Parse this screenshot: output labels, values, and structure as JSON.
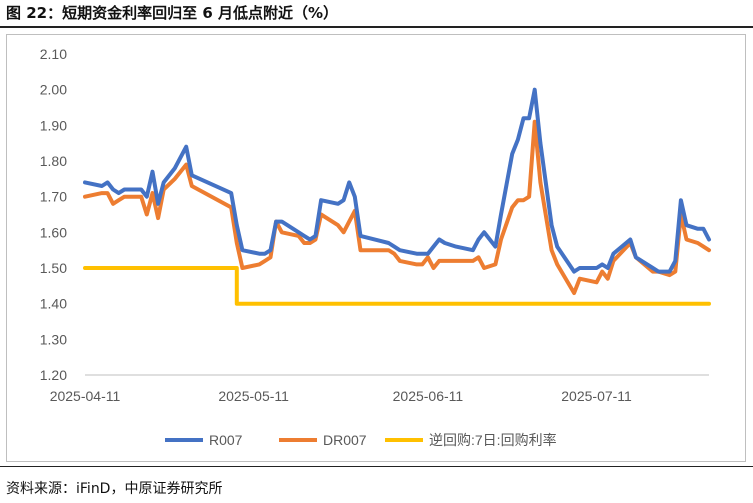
{
  "figure": {
    "title": "图 22：短期资金利率回归至 6 月低点附近（%）",
    "source": "资料来源：iFinD，中原证券研究所"
  },
  "chart_data": {
    "type": "line",
    "ylim": [
      1.2,
      2.1
    ],
    "yticks": [
      "1.20",
      "1.30",
      "1.40",
      "1.50",
      "1.60",
      "1.70",
      "1.80",
      "1.90",
      "2.00",
      "2.10"
    ],
    "xlim": [
      "2025-04-11",
      "2025-07-31"
    ],
    "xticks": [
      "2025-04-11",
      "2025-05-11",
      "2025-06-11",
      "2025-07-11"
    ],
    "grid": false,
    "legend": "bottom",
    "series": [
      {
        "name": "R007",
        "color": "#4472C4",
        "points": [
          [
            "2025-04-11",
            1.74
          ],
          [
            "2025-04-14",
            1.73
          ],
          [
            "2025-04-15",
            1.74
          ],
          [
            "2025-04-16",
            1.72
          ],
          [
            "2025-04-17",
            1.71
          ],
          [
            "2025-04-18",
            1.72
          ],
          [
            "2025-04-21",
            1.72
          ],
          [
            "2025-04-22",
            1.7
          ],
          [
            "2025-04-23",
            1.77
          ],
          [
            "2025-04-24",
            1.68
          ],
          [
            "2025-04-25",
            1.74
          ],
          [
            "2025-04-27",
            1.78
          ],
          [
            "2025-04-29",
            1.84
          ],
          [
            "2025-04-30",
            1.76
          ],
          [
            "2025-05-07",
            1.71
          ],
          [
            "2025-05-08",
            1.62
          ],
          [
            "2025-05-09",
            1.55
          ],
          [
            "2025-05-12",
            1.54
          ],
          [
            "2025-05-13",
            1.54
          ],
          [
            "2025-05-14",
            1.55
          ],
          [
            "2025-05-15",
            1.63
          ],
          [
            "2025-05-16",
            1.63
          ],
          [
            "2025-05-19",
            1.6
          ],
          [
            "2025-05-20",
            1.59
          ],
          [
            "2025-05-21",
            1.58
          ],
          [
            "2025-05-22",
            1.59
          ],
          [
            "2025-05-23",
            1.69
          ],
          [
            "2025-05-26",
            1.68
          ],
          [
            "2025-05-27",
            1.69
          ],
          [
            "2025-05-28",
            1.74
          ],
          [
            "2025-05-29",
            1.7
          ],
          [
            "2025-05-30",
            1.59
          ],
          [
            "2025-06-04",
            1.57
          ],
          [
            "2025-06-05",
            1.56
          ],
          [
            "2025-06-06",
            1.55
          ],
          [
            "2025-06-09",
            1.54
          ],
          [
            "2025-06-10",
            1.54
          ],
          [
            "2025-06-11",
            1.54
          ],
          [
            "2025-06-12",
            1.56
          ],
          [
            "2025-06-13",
            1.58
          ],
          [
            "2025-06-14",
            1.57
          ],
          [
            "2025-06-16",
            1.56
          ],
          [
            "2025-06-19",
            1.55
          ],
          [
            "2025-06-20",
            1.58
          ],
          [
            "2025-06-21",
            1.6
          ],
          [
            "2025-06-23",
            1.56
          ],
          [
            "2025-06-24",
            1.65
          ],
          [
            "2025-06-26",
            1.82
          ],
          [
            "2025-06-27",
            1.86
          ],
          [
            "2025-06-28",
            1.92
          ],
          [
            "2025-06-29",
            1.92
          ],
          [
            "2025-06-30",
            2.0
          ],
          [
            "2025-07-01",
            1.85
          ],
          [
            "2025-07-03",
            1.62
          ],
          [
            "2025-07-04",
            1.56
          ],
          [
            "2025-07-07",
            1.49
          ],
          [
            "2025-07-08",
            1.5
          ],
          [
            "2025-07-11",
            1.5
          ],
          [
            "2025-07-12",
            1.51
          ],
          [
            "2025-07-13",
            1.5
          ],
          [
            "2025-07-14",
            1.54
          ],
          [
            "2025-07-17",
            1.58
          ],
          [
            "2025-07-18",
            1.53
          ],
          [
            "2025-07-21",
            1.5
          ],
          [
            "2025-07-22",
            1.49
          ],
          [
            "2025-07-24",
            1.49
          ],
          [
            "2025-07-25",
            1.52
          ],
          [
            "2025-07-26",
            1.69
          ],
          [
            "2025-07-27",
            1.62
          ],
          [
            "2025-07-29",
            1.61
          ],
          [
            "2025-07-30",
            1.61
          ],
          [
            "2025-07-31",
            1.58
          ]
        ]
      },
      {
        "name": "DR007",
        "color": "#ED7D31",
        "points": [
          [
            "2025-04-11",
            1.7
          ],
          [
            "2025-04-14",
            1.71
          ],
          [
            "2025-04-15",
            1.71
          ],
          [
            "2025-04-16",
            1.68
          ],
          [
            "2025-04-17",
            1.69
          ],
          [
            "2025-04-18",
            1.7
          ],
          [
            "2025-04-21",
            1.7
          ],
          [
            "2025-04-22",
            1.65
          ],
          [
            "2025-04-23",
            1.71
          ],
          [
            "2025-04-24",
            1.64
          ],
          [
            "2025-04-25",
            1.72
          ],
          [
            "2025-04-27",
            1.75
          ],
          [
            "2025-04-29",
            1.79
          ],
          [
            "2025-04-30",
            1.73
          ],
          [
            "2025-05-07",
            1.67
          ],
          [
            "2025-05-08",
            1.57
          ],
          [
            "2025-05-09",
            1.5
          ],
          [
            "2025-05-12",
            1.51
          ],
          [
            "2025-05-13",
            1.52
          ],
          [
            "2025-05-14",
            1.53
          ],
          [
            "2025-05-15",
            1.63
          ],
          [
            "2025-05-16",
            1.6
          ],
          [
            "2025-05-19",
            1.59
          ],
          [
            "2025-05-20",
            1.57
          ],
          [
            "2025-05-21",
            1.57
          ],
          [
            "2025-05-22",
            1.58
          ],
          [
            "2025-05-23",
            1.65
          ],
          [
            "2025-05-26",
            1.62
          ],
          [
            "2025-05-27",
            1.6
          ],
          [
            "2025-05-28",
            1.63
          ],
          [
            "2025-05-29",
            1.66
          ],
          [
            "2025-05-30",
            1.55
          ],
          [
            "2025-06-04",
            1.55
          ],
          [
            "2025-06-05",
            1.54
          ],
          [
            "2025-06-06",
            1.52
          ],
          [
            "2025-06-09",
            1.51
          ],
          [
            "2025-06-10",
            1.51
          ],
          [
            "2025-06-11",
            1.53
          ],
          [
            "2025-06-12",
            1.5
          ],
          [
            "2025-06-13",
            1.52
          ],
          [
            "2025-06-14",
            1.52
          ],
          [
            "2025-06-16",
            1.52
          ],
          [
            "2025-06-19",
            1.52
          ],
          [
            "2025-06-20",
            1.53
          ],
          [
            "2025-06-21",
            1.5
          ],
          [
            "2025-06-23",
            1.51
          ],
          [
            "2025-06-24",
            1.58
          ],
          [
            "2025-06-26",
            1.67
          ],
          [
            "2025-06-27",
            1.69
          ],
          [
            "2025-06-28",
            1.69
          ],
          [
            "2025-06-29",
            1.7
          ],
          [
            "2025-06-30",
            1.91
          ],
          [
            "2025-07-01",
            1.74
          ],
          [
            "2025-07-03",
            1.55
          ],
          [
            "2025-07-04",
            1.51
          ],
          [
            "2025-07-07",
            1.43
          ],
          [
            "2025-07-08",
            1.47
          ],
          [
            "2025-07-11",
            1.46
          ],
          [
            "2025-07-12",
            1.49
          ],
          [
            "2025-07-13",
            1.47
          ],
          [
            "2025-07-14",
            1.52
          ],
          [
            "2025-07-17",
            1.57
          ],
          [
            "2025-07-18",
            1.53
          ],
          [
            "2025-07-21",
            1.49
          ],
          [
            "2025-07-22",
            1.49
          ],
          [
            "2025-07-24",
            1.48
          ],
          [
            "2025-07-25",
            1.49
          ],
          [
            "2025-07-26",
            1.65
          ],
          [
            "2025-07-27",
            1.58
          ],
          [
            "2025-07-29",
            1.57
          ],
          [
            "2025-07-30",
            1.56
          ],
          [
            "2025-07-31",
            1.55
          ]
        ]
      },
      {
        "name": "逆回购:7日:回购利率",
        "color": "#FFC000",
        "points": [
          [
            "2025-04-11",
            1.5
          ],
          [
            "2025-05-07",
            1.5
          ],
          [
            "2025-05-08",
            1.4
          ],
          [
            "2025-07-31",
            1.4
          ]
        ]
      }
    ]
  }
}
